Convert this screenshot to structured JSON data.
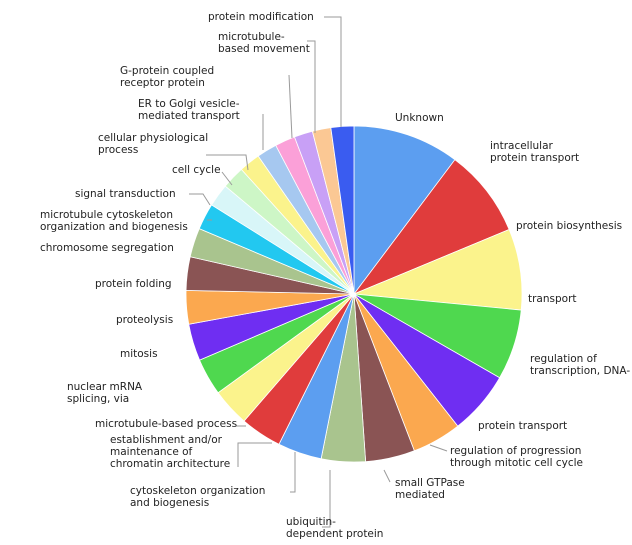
{
  "chart_data": {
    "type": "pie",
    "title": "",
    "start": "top, clockwise",
    "labels": [
      "Unknown",
      "intracellular protein transport",
      "protein biosynthesis",
      "transport",
      "regulation of transcription, DNA-",
      "protein transport",
      "regulation of progression through mitotic cell cycle",
      "small GTPase mediated",
      "ubiquitin-dependent protein",
      "cytoskeleton organization and biogenesis",
      "establishment and/or maintenance of chromatin architecture",
      "microtubule-based process",
      "nuclear mRNA splicing, via",
      "mitosis",
      "proteolysis",
      "protein folding",
      "chromosome segregation",
      "microtubule cytoskeleton organization and biogenesis",
      "signal transduction",
      "cell cycle",
      "cellular physiological process",
      "ER to Golgi vesicle-mediated transport",
      "G-protein coupled receptor protein",
      "microtubule-based movement",
      "protein modification"
    ],
    "values": [
      12.1,
      10.0,
      9.2,
      8.0,
      7.2,
      5.6,
      5.6,
      5.0,
      5.0,
      4.7,
      4.3,
      4.2,
      4.2,
      3.8,
      3.8,
      3.3,
      3.0,
      2.6,
      2.6,
      2.4,
      2.3,
      2.3,
      2.1,
      2.1,
      2.6
    ],
    "colors": [
      "#5c9ef0",
      "#e03c3c",
      "#fbf38c",
      "#4fd84f",
      "#6f2ef2",
      "#fba84f",
      "#8a5454",
      "#a9c48e",
      "#5c9ef0",
      "#e03c3c",
      "#fbf38c",
      "#4fd84f",
      "#6f2ef2",
      "#fba84f",
      "#8a5454",
      "#a9c48e",
      "#22c8f0",
      "#d8f6f8",
      "#cdf6c6",
      "#fbf38c",
      "#a6c8f0",
      "#fba0d8",
      "#c8a0f6",
      "#fbc894",
      "#3a5cf0"
    ],
    "legend": "none (labels with leader lines)"
  }
}
